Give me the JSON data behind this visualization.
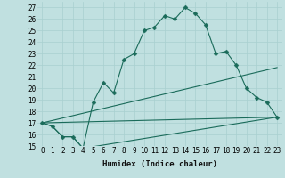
{
  "xlabel": "Humidex (Indice chaleur)",
  "background_color": "#c0e0e0",
  "line_color": "#1a6b5a",
  "grid_color": "#a8d0d0",
  "xlim": [
    -0.5,
    23.5
  ],
  "ylim": [
    15,
    27.5
  ],
  "yticks": [
    15,
    16,
    17,
    18,
    19,
    20,
    21,
    22,
    23,
    24,
    25,
    26,
    27
  ],
  "xticks": [
    0,
    1,
    2,
    3,
    4,
    5,
    6,
    7,
    8,
    9,
    10,
    11,
    12,
    13,
    14,
    15,
    16,
    17,
    18,
    19,
    20,
    21,
    22,
    23
  ],
  "series_main": {
    "x": [
      0,
      1,
      2,
      3,
      4,
      5,
      6,
      7,
      8,
      9,
      10,
      11,
      12,
      13,
      14,
      15,
      16,
      17,
      18,
      19,
      20,
      21,
      22,
      23
    ],
    "y": [
      17.0,
      16.7,
      15.8,
      15.8,
      14.8,
      18.8,
      20.5,
      19.6,
      22.5,
      23.0,
      25.0,
      25.3,
      26.3,
      26.0,
      27.0,
      26.5,
      25.5,
      23.0,
      23.2,
      22.0,
      20.0,
      19.2,
      18.8,
      17.5
    ]
  },
  "series_lower": {
    "x": [
      0,
      1,
      2,
      3,
      4,
      23
    ],
    "y": [
      17.0,
      16.7,
      15.8,
      15.8,
      14.8,
      17.5
    ]
  },
  "series_diag1": {
    "x": [
      0,
      23
    ],
    "y": [
      17.0,
      21.8
    ]
  },
  "series_diag2": {
    "x": [
      0,
      23
    ],
    "y": [
      17.0,
      17.5
    ]
  }
}
